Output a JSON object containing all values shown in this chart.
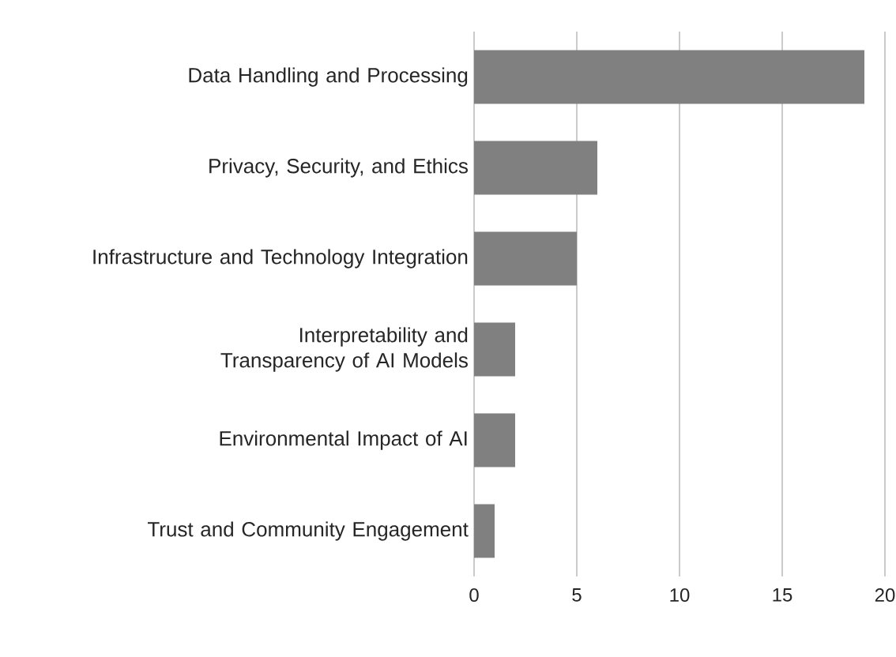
{
  "chart_data": {
    "type": "bar",
    "orientation": "horizontal",
    "categories": [
      "Data Handling and Processing",
      "Privacy, Security, and Ethics",
      "Infrastructure and Technology Integration",
      "Interpretability and Transparency of AI Models",
      "Environmental Impact of AI",
      "Trust and Community Engagement"
    ],
    "values": [
      19,
      6,
      5,
      2,
      2,
      1
    ],
    "color": "#808080",
    "xlim": [
      0,
      20
    ],
    "xticks": [
      0,
      5,
      10,
      15,
      20
    ],
    "grid": "x"
  }
}
